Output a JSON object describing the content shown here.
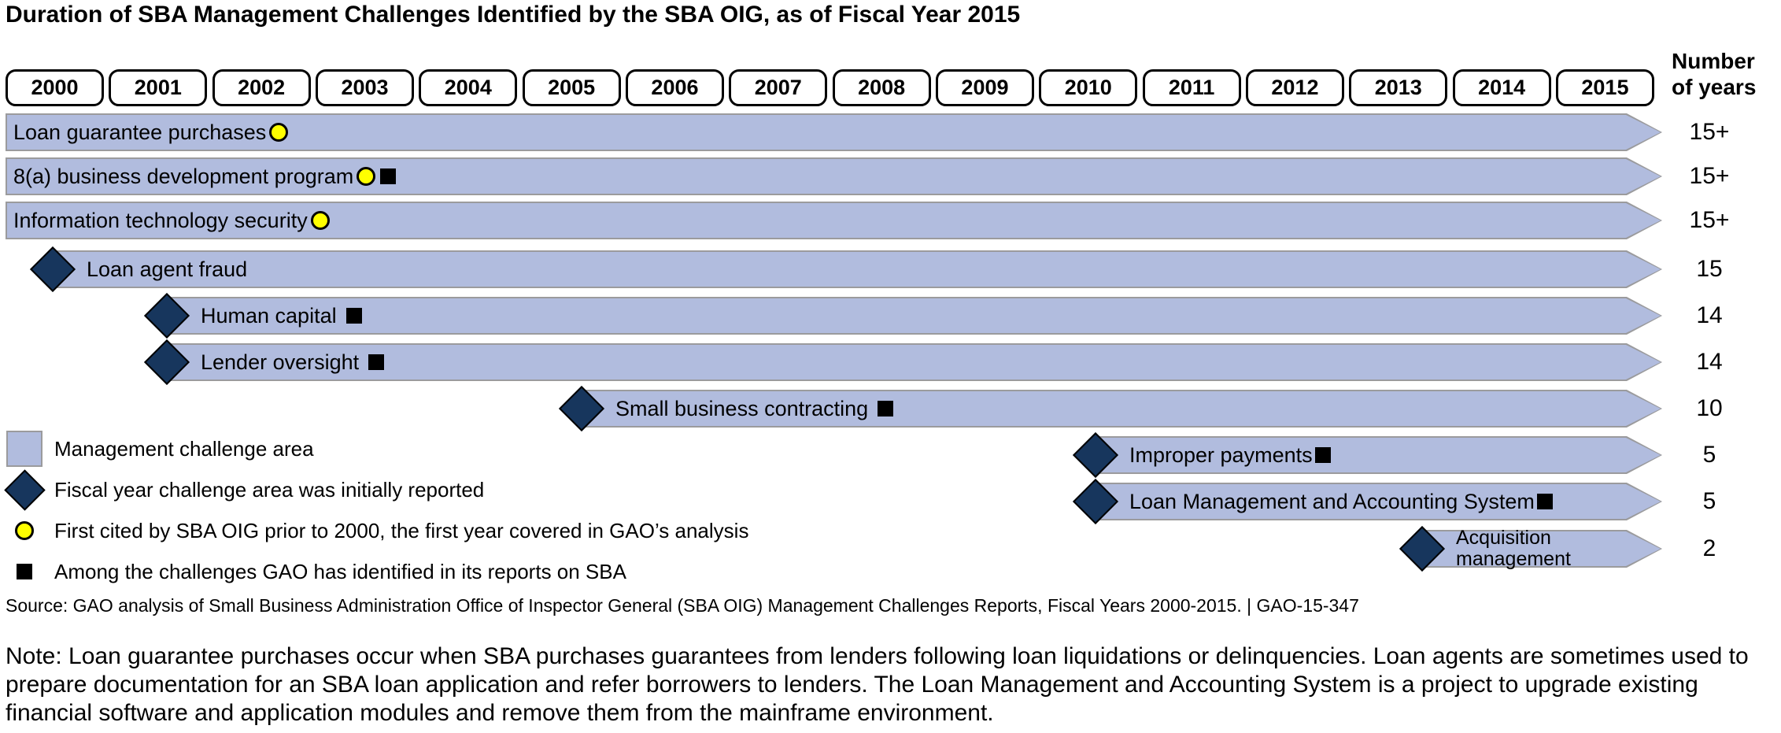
{
  "title": "Duration of SBA Management Challenges Identified by the SBA OIG, as of Fiscal Year 2015",
  "number_of_years_header": {
    "line1": "Number",
    "line2": "of years"
  },
  "chart_data": {
    "type": "timeline",
    "title": "Duration of SBA Management Challenges Identified by the SBA OIG, as of Fiscal Year 2015",
    "x_axis_years": [
      2000,
      2001,
      2002,
      2003,
      2004,
      2005,
      2006,
      2007,
      2008,
      2009,
      2010,
      2011,
      2012,
      2013,
      2014,
      2015
    ],
    "value_column_label": "Number of years",
    "rows": [
      {
        "label": "Loan guarantee purchases",
        "start_year": 2000,
        "end_year": 2015,
        "num_years": "15+",
        "initially_reported_diamond": false,
        "cited_prior_2000_circle": true,
        "gao_identified_square": false,
        "tight_square": false,
        "wrap": false
      },
      {
        "label": "8(a) business development program",
        "start_year": 2000,
        "end_year": 2015,
        "num_years": "15+",
        "initially_reported_diamond": false,
        "cited_prior_2000_circle": true,
        "gao_identified_square": true,
        "tight_square": true,
        "wrap": false
      },
      {
        "label": "Information technology security",
        "start_year": 2000,
        "end_year": 2015,
        "num_years": "15+",
        "initially_reported_diamond": false,
        "cited_prior_2000_circle": true,
        "gao_identified_square": false,
        "tight_square": false,
        "wrap": false
      },
      {
        "label": "Loan agent fraud",
        "start_year": 2001,
        "end_year": 2015,
        "num_years": "15",
        "initially_reported_diamond": true,
        "cited_prior_2000_circle": false,
        "gao_identified_square": false,
        "tight_square": false,
        "wrap": false
      },
      {
        "label": "Human capital",
        "start_year": 2002,
        "end_year": 2015,
        "num_years": "14",
        "initially_reported_diamond": true,
        "cited_prior_2000_circle": false,
        "gao_identified_square": true,
        "tight_square": false,
        "wrap": false
      },
      {
        "label": "Lender oversight",
        "start_year": 2002,
        "end_year": 2015,
        "num_years": "14",
        "initially_reported_diamond": true,
        "cited_prior_2000_circle": false,
        "gao_identified_square": true,
        "tight_square": false,
        "wrap": false
      },
      {
        "label": "Small business contracting",
        "start_year": 2006,
        "end_year": 2015,
        "num_years": "10",
        "initially_reported_diamond": true,
        "cited_prior_2000_circle": false,
        "gao_identified_square": true,
        "tight_square": false,
        "wrap": false
      },
      {
        "label": "Improper payments",
        "start_year": 2011,
        "end_year": 2015,
        "num_years": "5",
        "initially_reported_diamond": true,
        "cited_prior_2000_circle": false,
        "gao_identified_square": true,
        "tight_square": true,
        "wrap": false
      },
      {
        "label": "Loan Management and Accounting System",
        "start_year": 2011,
        "end_year": 2015,
        "num_years": "5",
        "initially_reported_diamond": true,
        "cited_prior_2000_circle": false,
        "gao_identified_square": true,
        "tight_square": true,
        "wrap": false
      },
      {
        "label": "Acquisition management",
        "start_year": 2014,
        "end_year": 2015,
        "num_years": "2",
        "initially_reported_diamond": true,
        "cited_prior_2000_circle": false,
        "gao_identified_square": false,
        "tight_square": false,
        "wrap": true
      }
    ],
    "legend": [
      {
        "symbol": "bar-swatch",
        "label": "Management challenge area"
      },
      {
        "symbol": "diamond",
        "label": "Fiscal year challenge area was initially reported"
      },
      {
        "symbol": "yellow-circle",
        "label": "First cited by SBA OIG prior to 2000, the first year covered in GAO’s analysis"
      },
      {
        "symbol": "black-square",
        "label": "Among the challenges GAO has identified in its reports on SBA"
      }
    ]
  },
  "source": "Source: GAO analysis of Small Business Administration Office of Inspector General (SBA OIG) Management Challenges Reports, Fiscal Years 2000-2015.  |  GAO-15-347",
  "note": "Note: Loan guarantee purchases occur when SBA purchases guarantees from lenders following loan liquidations or delinquencies. Loan agents are sometimes used to prepare documentation for an SBA loan application and refer borrowers to lenders. The Loan Management and Accounting System is a project to upgrade existing financial software and application modules and remove them from the mainframe environment.",
  "colors": {
    "bar_fill": "#B1BCDE",
    "bar_border": "#9B9B9D",
    "diamond_fill": "#17365D",
    "marker_yellow": "#FFFF00",
    "marker_black": "#000000"
  }
}
